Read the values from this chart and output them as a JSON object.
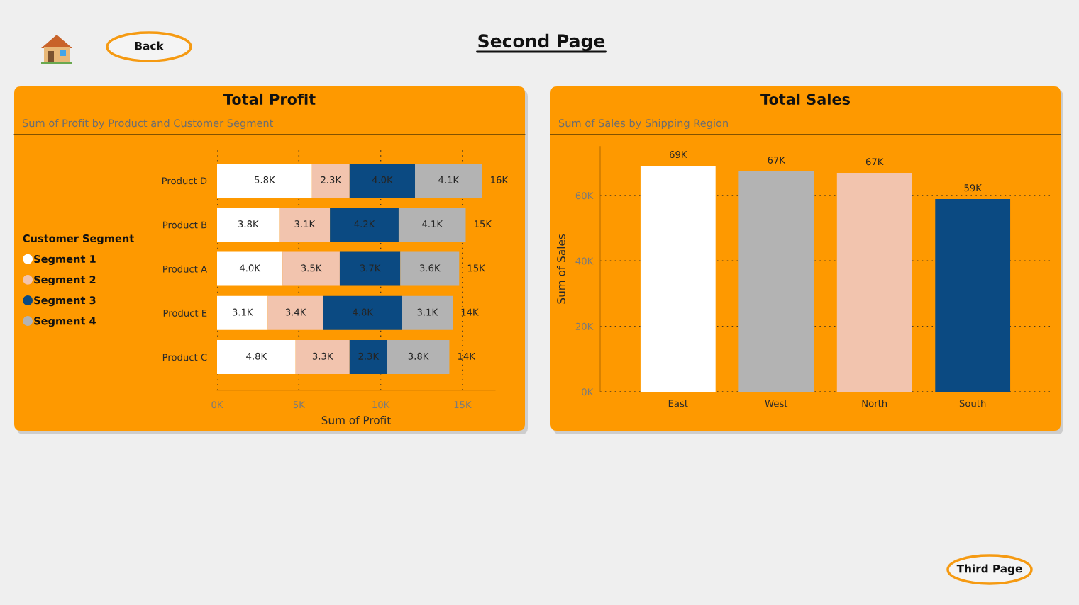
{
  "chart_data": [
    {
      "type": "other",
      "title": "Second Page",
      "annotations": [
        "Back"
      ]
    },
    {
      "type": "bar",
      "orientation": "horizontal",
      "stacked": true,
      "title": "Total Profit",
      "subtitle": "Sum of Profit by Product and Customer Segment",
      "xlabel": "Sum of Profit",
      "legend_title": "Customer Segment",
      "legend": "left",
      "categories": [
        "Product D",
        "Product B",
        "Product A",
        "Product E",
        "Product C"
      ],
      "series": [
        {
          "name": "Segment 1",
          "color": "#ffffff",
          "values": [
            5800,
            3800,
            4000,
            3100,
            4800
          ],
          "value_labels": [
            "5.8K",
            "3.8K",
            "4.0K",
            "3.1K",
            "4.8K"
          ]
        },
        {
          "name": "Segment 2",
          "color": "#f2c4ae",
          "values": [
            2300,
            3100,
            3500,
            3400,
            3300
          ],
          "value_labels": [
            "2.3K",
            "3.1K",
            "3.5K",
            "3.4K",
            "3.3K"
          ]
        },
        {
          "name": "Segment 3",
          "color": "#0b4a82",
          "values": [
            4000,
            4200,
            3700,
            4800,
            2300
          ],
          "value_labels": [
            "4.0K",
            "4.2K",
            "3.7K",
            "4.8K",
            "2.3K"
          ]
        },
        {
          "name": "Segment 4",
          "color": "#b3b3b3",
          "values": [
            4100,
            4100,
            3600,
            3100,
            3800
          ],
          "value_labels": [
            "4.1K",
            "4.1K",
            "3.6K",
            "3.1K",
            "3.8K"
          ]
        }
      ],
      "totals": [
        "16K",
        "15K",
        "15K",
        "14K",
        "14K"
      ],
      "xlim": [
        0,
        17000
      ],
      "xticks": [
        {
          "value": 0,
          "label": "0K"
        },
        {
          "value": 5000,
          "label": "5K"
        },
        {
          "value": 10000,
          "label": "10K"
        },
        {
          "value": 15000,
          "label": "15K"
        }
      ],
      "grid": "x"
    },
    {
      "type": "bar",
      "title": "Total Sales",
      "subtitle": "Sum of Sales by Shipping Region",
      "ylabel": "Sum of Sales",
      "categories": [
        "East",
        "West",
        "North",
        "South"
      ],
      "values": [
        69100,
        67400,
        66900,
        58900
      ],
      "colors": [
        "#ffffff",
        "#b3b3b3",
        "#f2c4ae",
        "#0b4a82"
      ],
      "value_labels": [
        "69K",
        "67K",
        "67K",
        "59K"
      ],
      "ylim": [
        0,
        75000
      ],
      "yticks": [
        {
          "value": 0,
          "label": "0K"
        },
        {
          "value": 20000,
          "label": "20K"
        },
        {
          "value": 40000,
          "label": "40K"
        },
        {
          "value": 60000,
          "label": "60K"
        }
      ],
      "grid": "y"
    },
    {
      "type": "other",
      "annotations": [
        "Third Page"
      ]
    }
  ]
}
